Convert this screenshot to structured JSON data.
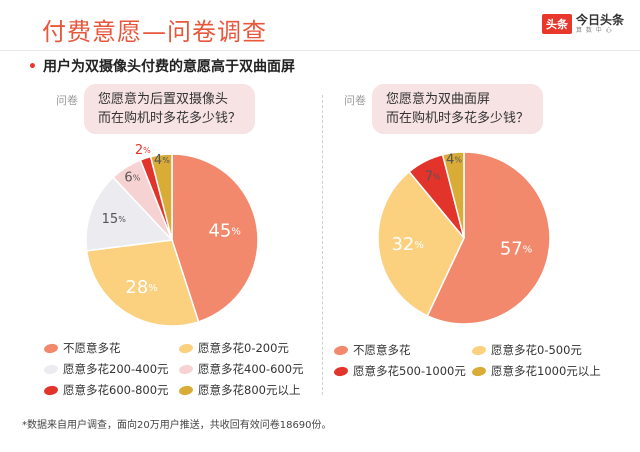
{
  "page": {
    "title": "付费意愿—问卷调查",
    "subtitle_bullet": "•",
    "subtitle": "用户为双摄像头付费的意愿高于双曲面屏",
    "footnote": "*数据来自用户调查，面向20万用户推送，共收回有效问卷18690份。"
  },
  "logo": {
    "badge": "头条",
    "name": "今日头条",
    "sub": "算 数 中 心"
  },
  "chart_data": [
    {
      "type": "pie",
      "question_label": "问卷",
      "question_lines": [
        "您愿意为后置双摄像头",
        "而在购机时多花多少钱？"
      ],
      "categories": [
        "不愿意多花",
        "愿意多花0-200元",
        "愿意多花200-400元",
        "愿意多花400-600元",
        "愿意多花600-800元",
        "愿意多花800元以上"
      ],
      "values": [
        45,
        28,
        15,
        6,
        2,
        4
      ],
      "value_labels": [
        "45",
        "28",
        "15",
        "6",
        "2",
        "4"
      ],
      "unit": "%",
      "colors": [
        "#f2886c",
        "#fbd07f",
        "#ebebf0",
        "#f7d2d2",
        "#e2342a",
        "#d8ac36"
      ],
      "legend_position": "bottom"
    },
    {
      "type": "pie",
      "question_label": "问卷",
      "question_lines": [
        "您愿意为双曲面屏",
        "而在购机时多花多少钱？"
      ],
      "categories": [
        "不愿意多花",
        "愿意多花0-500元",
        "愿意多花500-1000元",
        "愿意多花1000元以上"
      ],
      "values": [
        57,
        32,
        7,
        4
      ],
      "value_labels": [
        "57",
        "32",
        "7",
        "4"
      ],
      "unit": "%",
      "colors": [
        "#f2886c",
        "#fbd07f",
        "#e2342a",
        "#d8ac36"
      ],
      "legend_position": "bottom"
    }
  ]
}
